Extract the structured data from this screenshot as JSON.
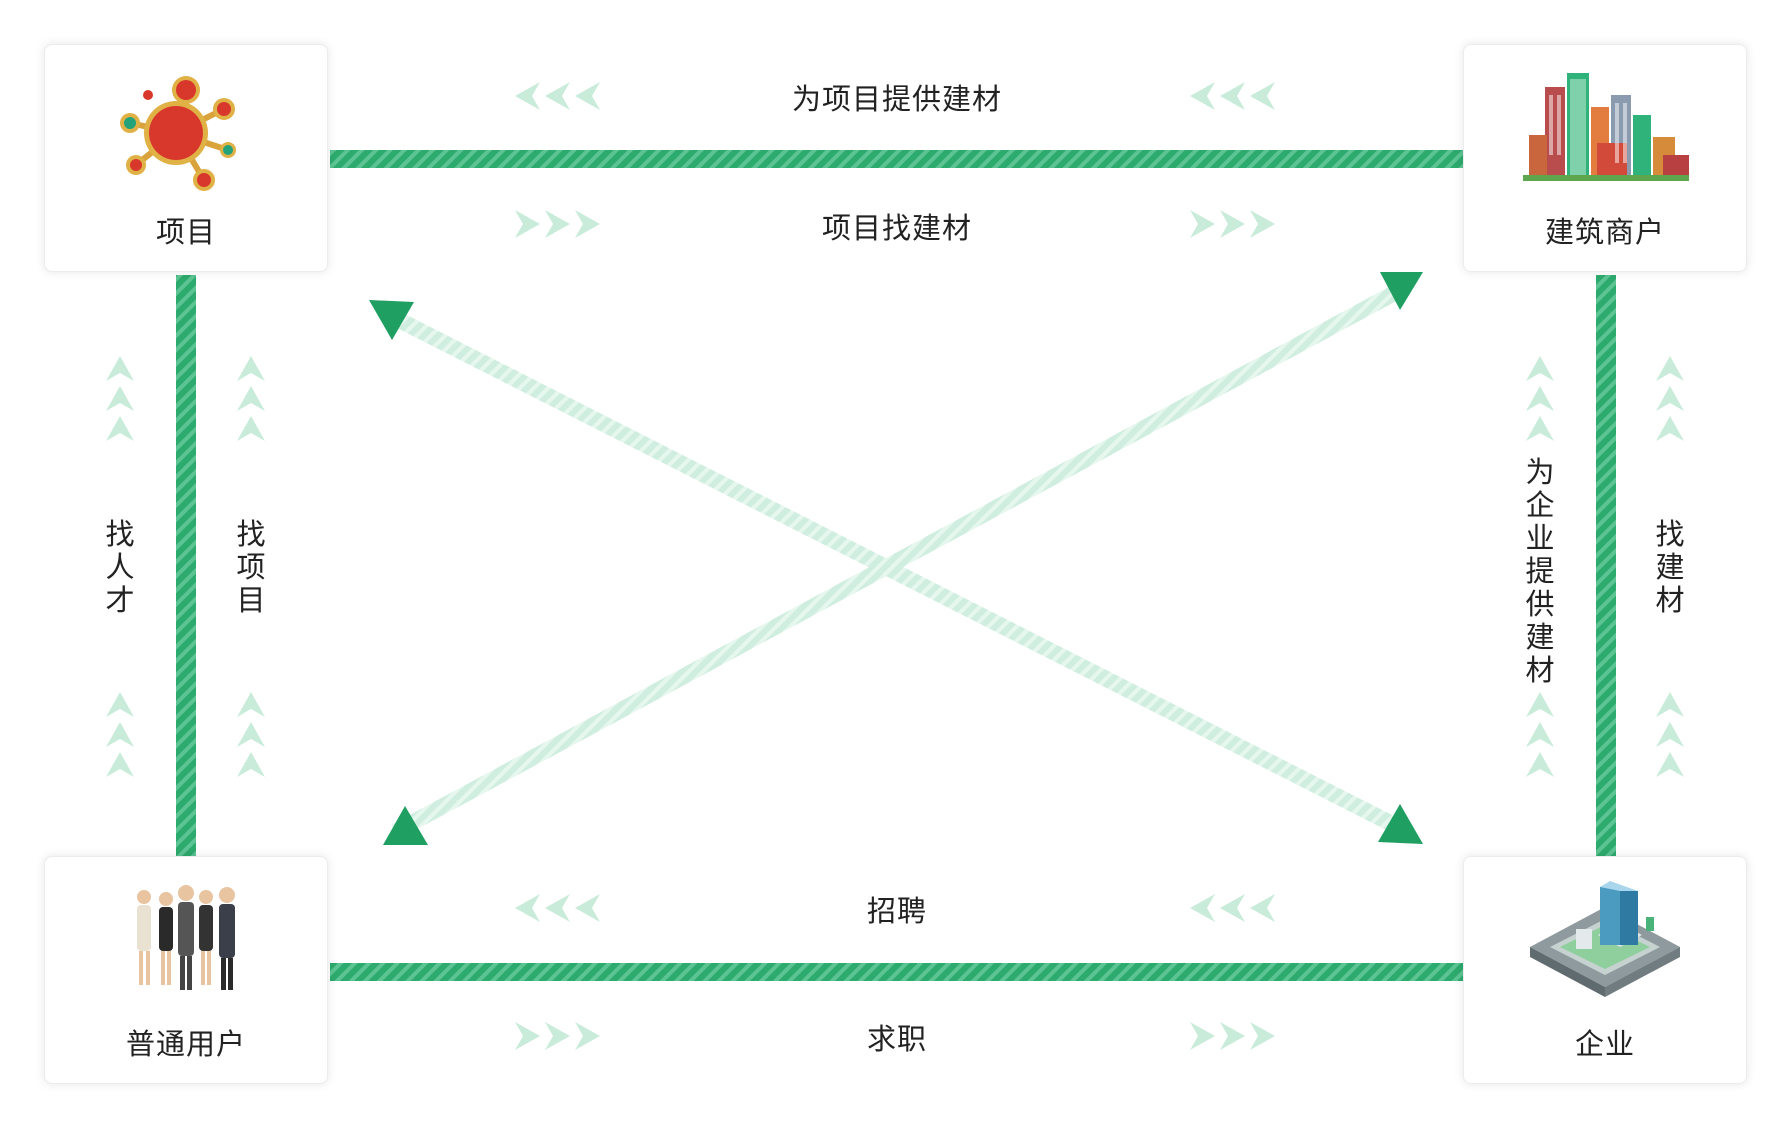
{
  "nodes": {
    "project": {
      "label": "项目",
      "icon": "network-node-icon"
    },
    "supplier": {
      "label": "建筑商户",
      "icon": "city-buildings-icon"
    },
    "user": {
      "label": "普通用户",
      "icon": "people-group-icon"
    },
    "enterprise": {
      "label": "企业",
      "icon": "office-block-icon"
    }
  },
  "edges": {
    "top_upper": "为项目提供建材",
    "top_lower": "项目找建材",
    "bottom_upper": "招聘",
    "bottom_lower": "求职",
    "left_outer": "找人才",
    "left_inner": "找项目",
    "right_inner": "为企业提供建材",
    "right_outer": "找建材"
  },
  "colors": {
    "accent": "#2daa6d",
    "accent_light": "#b9e6cf",
    "chevron": "#c9ecda",
    "diagonal": "#d3efe1"
  }
}
